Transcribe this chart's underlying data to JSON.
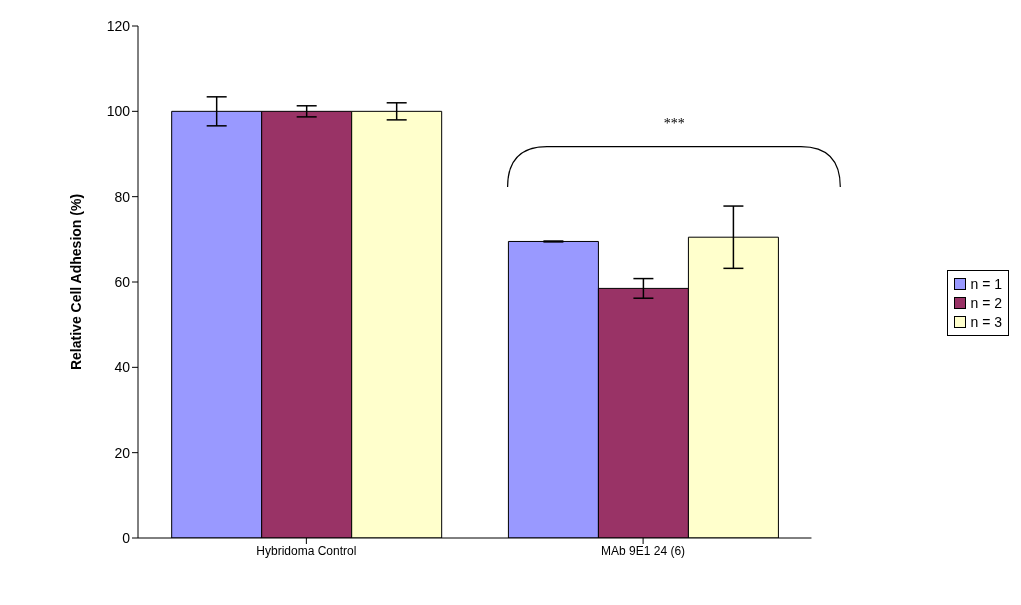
{
  "chart_data": {
    "type": "bar",
    "ylabel": "Relative Cell Adhesion (%)",
    "categories": [
      "Hybridoma Control",
      "MAb 9E1 24 (6)"
    ],
    "series": [
      {
        "name": "n = 1",
        "color": "#9999ff",
        "values": [
          100,
          69.5
        ],
        "errors": [
          3.4,
          0.1
        ]
      },
      {
        "name": "n = 2",
        "color": "#993366",
        "values": [
          100,
          58.5
        ],
        "errors": [
          1.3,
          2.3
        ]
      },
      {
        "name": "n = 3",
        "color": "#ffffcc",
        "values": [
          100,
          70.5
        ],
        "errors": [
          2,
          7.3
        ]
      }
    ],
    "ylim": [
      0,
      120
    ],
    "yticks": [
      0,
      20,
      40,
      60,
      80,
      100,
      120
    ],
    "grid": false,
    "legend": "right",
    "annotations": [
      "***"
    ]
  }
}
